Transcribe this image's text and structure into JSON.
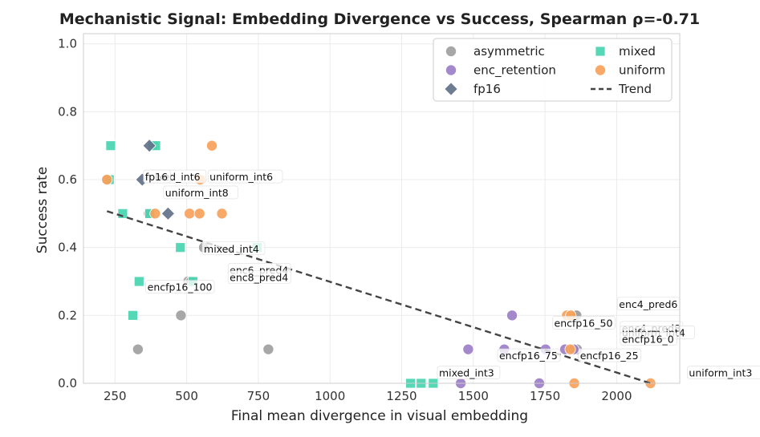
{
  "chart_data": {
    "type": "scatter",
    "title": "Mechanistic Signal: Embedding Divergence vs Success, Spearman ρ=-0.71",
    "xlabel": "Final mean divergence in visual embedding",
    "ylabel": "Success rate",
    "xlim": [
      140,
      2220
    ],
    "ylim": [
      0.0,
      1.03
    ],
    "xticks": [
      250,
      500,
      750,
      1000,
      1250,
      1500,
      1750,
      2000
    ],
    "yticks": [
      0.0,
      0.2,
      0.4,
      0.6,
      0.8,
      1.0
    ],
    "grid": true,
    "legend_position": "top-right",
    "colors": {
      "asymmetric": "#a0a0a0",
      "enc_retention": "#9b7fc8",
      "fp16": "#627189",
      "mixed": "#48d4b0",
      "uniform": "#f7a25a",
      "trend": "#444444"
    },
    "legend": [
      {
        "label": "asymmetric",
        "marker": "circle",
        "series": "asymmetric"
      },
      {
        "label": "mixed",
        "marker": "square",
        "series": "mixed"
      },
      {
        "label": "enc_retention",
        "marker": "circle",
        "series": "enc_retention"
      },
      {
        "label": "uniform",
        "marker": "circle",
        "series": "uniform"
      },
      {
        "label": "fp16",
        "marker": "diamond",
        "series": "fp16"
      },
      {
        "label": "Trend",
        "marker": "dashed-line",
        "series": "trend"
      }
    ],
    "series": [
      {
        "name": "asymmetric",
        "marker": "circle",
        "points": [
          {
            "x": 222,
            "y": 0.6
          },
          {
            "x": 330,
            "y": 0.1
          },
          {
            "x": 368,
            "y": 0.5
          },
          {
            "x": 480,
            "y": 0.2
          },
          {
            "x": 505,
            "y": 0.3
          },
          {
            "x": 515,
            "y": 0.3
          },
          {
            "x": 560,
            "y": 0.4
          },
          {
            "x": 785,
            "y": 0.1
          },
          {
            "x": 1855,
            "y": 0.2
          },
          {
            "x": 1860,
            "y": 0.2
          },
          {
            "x": 1862,
            "y": 0.1
          }
        ]
      },
      {
        "name": "enc_retention",
        "marker": "circle",
        "points": [
          {
            "x": 1482,
            "y": 0.1
          },
          {
            "x": 1608,
            "y": 0.1
          },
          {
            "x": 1635,
            "y": 0.2
          },
          {
            "x": 1730,
            "y": 0.0
          },
          {
            "x": 1752,
            "y": 0.1
          },
          {
            "x": 1820,
            "y": 0.1
          },
          {
            "x": 1850,
            "y": 0.1
          },
          {
            "x": 1456,
            "y": 0.0
          }
        ]
      },
      {
        "name": "fp16",
        "marker": "diamond",
        "points": [
          {
            "x": 345,
            "y": 0.6
          },
          {
            "x": 435,
            "y": 0.5
          },
          {
            "x": 370,
            "y": 0.7
          }
        ]
      },
      {
        "name": "mixed",
        "marker": "square",
        "points": [
          {
            "x": 235,
            "y": 0.7
          },
          {
            "x": 230,
            "y": 0.6
          },
          {
            "x": 277,
            "y": 0.5
          },
          {
            "x": 312,
            "y": 0.2
          },
          {
            "x": 334,
            "y": 0.3
          },
          {
            "x": 371,
            "y": 0.5
          },
          {
            "x": 382,
            "y": 0.7
          },
          {
            "x": 392,
            "y": 0.7
          },
          {
            "x": 478,
            "y": 0.4
          },
          {
            "x": 522,
            "y": 0.3
          },
          {
            "x": 746,
            "y": 0.4
          },
          {
            "x": 1281,
            "y": 0.0
          },
          {
            "x": 1318,
            "y": 0.0
          },
          {
            "x": 1360,
            "y": 0.0
          }
        ]
      },
      {
        "name": "uniform",
        "marker": "circle",
        "points": [
          {
            "x": 222,
            "y": 0.6
          },
          {
            "x": 390,
            "y": 0.5
          },
          {
            "x": 510,
            "y": 0.5
          },
          {
            "x": 545,
            "y": 0.5
          },
          {
            "x": 547,
            "y": 0.6
          },
          {
            "x": 588,
            "y": 0.7
          },
          {
            "x": 623,
            "y": 0.5
          },
          {
            "x": 1826,
            "y": 0.2
          },
          {
            "x": 1840,
            "y": 0.2
          },
          {
            "x": 1838,
            "y": 0.1
          },
          {
            "x": 1852,
            "y": 0.0
          },
          {
            "x": 2118,
            "y": 0.0
          }
        ]
      }
    ],
    "trend": {
      "x": [
        222,
        2118
      ],
      "y": [
        0.507,
        0.0
      ]
    },
    "annotations": [
      {
        "text": "mixed_int6",
        "x": 355,
        "y": 0.6,
        "anchor": "lower"
      },
      {
        "text": "fp16",
        "x": 355,
        "y": 0.6,
        "anchor": "right"
      },
      {
        "text": "uniform_int6",
        "x": 580,
        "y": 0.6,
        "anchor": "right"
      },
      {
        "text": "uniform_int8",
        "x": 425,
        "y": 0.553,
        "anchor": "right"
      },
      {
        "text": "mixed_int4",
        "x": 560,
        "y": 0.388,
        "anchor": "right"
      },
      {
        "text": "enc6_pred4",
        "x": 650,
        "y": 0.325,
        "anchor": "right"
      },
      {
        "text": "enc8_pred4",
        "x": 650,
        "y": 0.303,
        "anchor": "right"
      },
      {
        "text": "encfp16_100",
        "x": 363,
        "y": 0.275,
        "anchor": "right"
      },
      {
        "text": "enc4_pred6",
        "x": 2008,
        "y": 0.225,
        "anchor": "right"
      },
      {
        "text": "encfp16_50",
        "x": 1782,
        "y": 0.169,
        "anchor": "right"
      },
      {
        "text": "enc4_pred8",
        "x": 2018,
        "y": 0.154,
        "anchor": "right"
      },
      {
        "text": "uniform_int4",
        "x": 2018,
        "y": 0.141,
        "anchor": "right"
      },
      {
        "text": "encfp16_0",
        "x": 2018,
        "y": 0.122,
        "anchor": "right"
      },
      {
        "text": "encfp16_75",
        "x": 1590,
        "y": 0.073,
        "anchor": "right"
      },
      {
        "text": "encfp16_25",
        "x": 1872,
        "y": 0.073,
        "anchor": "right"
      },
      {
        "text": "mixed_int3",
        "x": 1380,
        "y": 0.022,
        "anchor": "right"
      },
      {
        "text": "uniform_int3",
        "x": 2252,
        "y": 0.022,
        "anchor": "right"
      }
    ]
  }
}
